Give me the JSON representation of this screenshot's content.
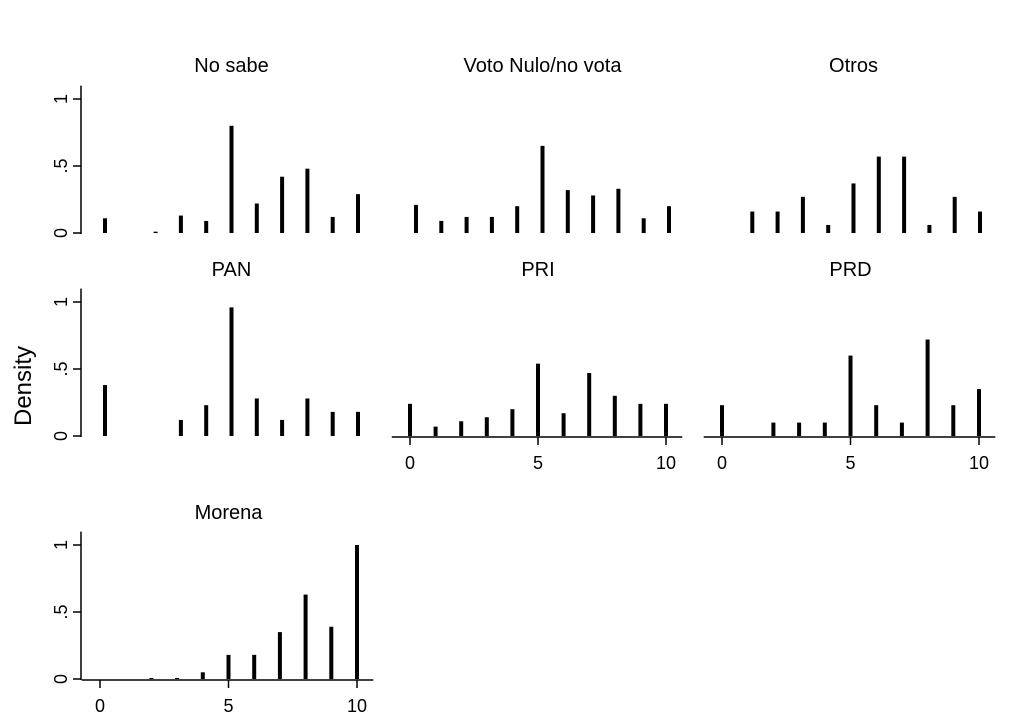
{
  "figure": {
    "ylabel": "Density",
    "x_ticks": [
      "0",
      "5",
      "10"
    ],
    "y_ticks": [
      "0",
      ".5",
      "1"
    ]
  },
  "chart_data": [
    {
      "type": "bar",
      "title": "No sabe",
      "x": [
        0,
        1,
        2,
        3,
        4,
        5,
        6,
        7,
        8,
        9,
        10
      ],
      "values": [
        0.11,
        0,
        0.01,
        0.13,
        0.09,
        0.8,
        0.22,
        0.42,
        0.48,
        0.12,
        0.29
      ],
      "xlim": [
        -0.4,
        10.4
      ],
      "ylim": [
        0,
        1.1
      ]
    },
    {
      "type": "bar",
      "title": "Voto Nulo/no vota",
      "x": [
        0,
        1,
        2,
        3,
        4,
        5,
        6,
        7,
        8,
        9,
        10
      ],
      "values": [
        0.21,
        0.09,
        0.12,
        0.12,
        0.2,
        0.65,
        0.32,
        0.28,
        0.33,
        0.11,
        0.2
      ],
      "xlim": [
        -0.4,
        10.4
      ],
      "ylim": [
        0,
        1.1
      ]
    },
    {
      "type": "bar",
      "title": "Otros",
      "x": [
        0,
        1,
        2,
        3,
        4,
        5,
        6,
        7,
        8,
        9,
        10
      ],
      "values": [
        0,
        0.16,
        0.16,
        0.27,
        0.06,
        0.37,
        0.57,
        0.57,
        0.06,
        0.27,
        0.16
      ],
      "xlim": [
        -0.4,
        10.4
      ],
      "ylim": [
        0,
        1.1
      ]
    },
    {
      "type": "bar",
      "title": "PAN",
      "x": [
        0,
        1,
        2,
        3,
        4,
        5,
        6,
        7,
        8,
        9,
        10
      ],
      "values": [
        0.38,
        0,
        0,
        0.12,
        0.23,
        0.96,
        0.28,
        0.12,
        0.28,
        0.18,
        0.18
      ],
      "xlim": [
        -0.4,
        10.4
      ],
      "ylim": [
        0,
        1.1
      ]
    },
    {
      "type": "bar",
      "title": "PRI",
      "x": [
        0,
        1,
        2,
        3,
        4,
        5,
        6,
        7,
        8,
        9,
        10
      ],
      "values": [
        0.24,
        0.07,
        0.11,
        0.14,
        0.2,
        0.54,
        0.17,
        0.47,
        0.3,
        0.24,
        0.24
      ],
      "xlim": [
        -0.4,
        10.4
      ],
      "ylim": [
        0,
        1.1
      ]
    },
    {
      "type": "bar",
      "title": "PRD",
      "x": [
        0,
        1,
        2,
        3,
        4,
        5,
        6,
        7,
        8,
        9,
        10
      ],
      "values": [
        0.23,
        0,
        0.1,
        0.1,
        0.1,
        0.6,
        0.23,
        0.1,
        0.72,
        0.23,
        0.35
      ],
      "xlim": [
        -0.4,
        10.4
      ],
      "ylim": [
        0,
        1.1
      ]
    },
    {
      "type": "bar",
      "title": "Morena",
      "x": [
        0,
        1,
        2,
        3,
        4,
        5,
        6,
        7,
        8,
        9,
        10
      ],
      "values": [
        0,
        0,
        0.005,
        0.005,
        0.05,
        0.18,
        0.18,
        0.35,
        0.63,
        0.39,
        1.0
      ],
      "xlim": [
        -0.4,
        10.4
      ],
      "ylim": [
        0,
        1.1
      ]
    }
  ]
}
